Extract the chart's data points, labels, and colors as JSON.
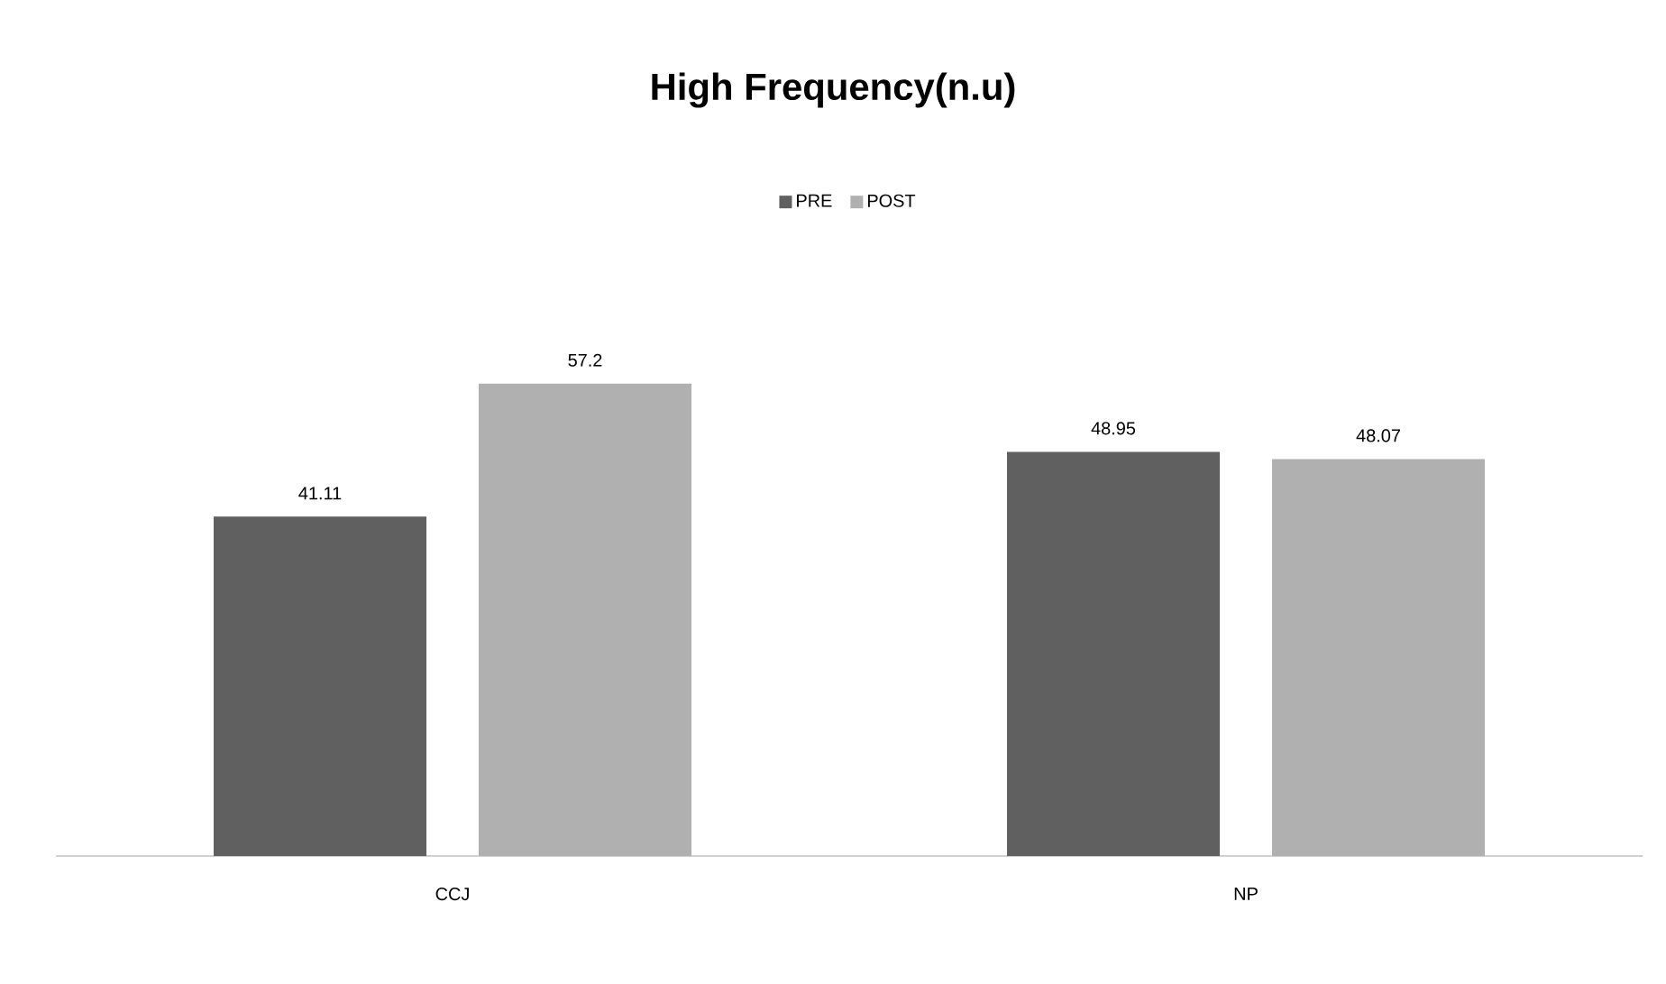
{
  "chart_data": {
    "type": "bar",
    "title": "High Frequency(n.u)",
    "categories": [
      "CCJ",
      "NP"
    ],
    "series": [
      {
        "name": "PRE",
        "color": "#606060",
        "values": [
          41.11,
          48.95
        ]
      },
      {
        "name": "POST",
        "color": "#b0b0b0",
        "values": [
          57.2,
          48.07
        ]
      }
    ],
    "tick_labels": "x",
    "data_labels": true,
    "legend": "top"
  }
}
